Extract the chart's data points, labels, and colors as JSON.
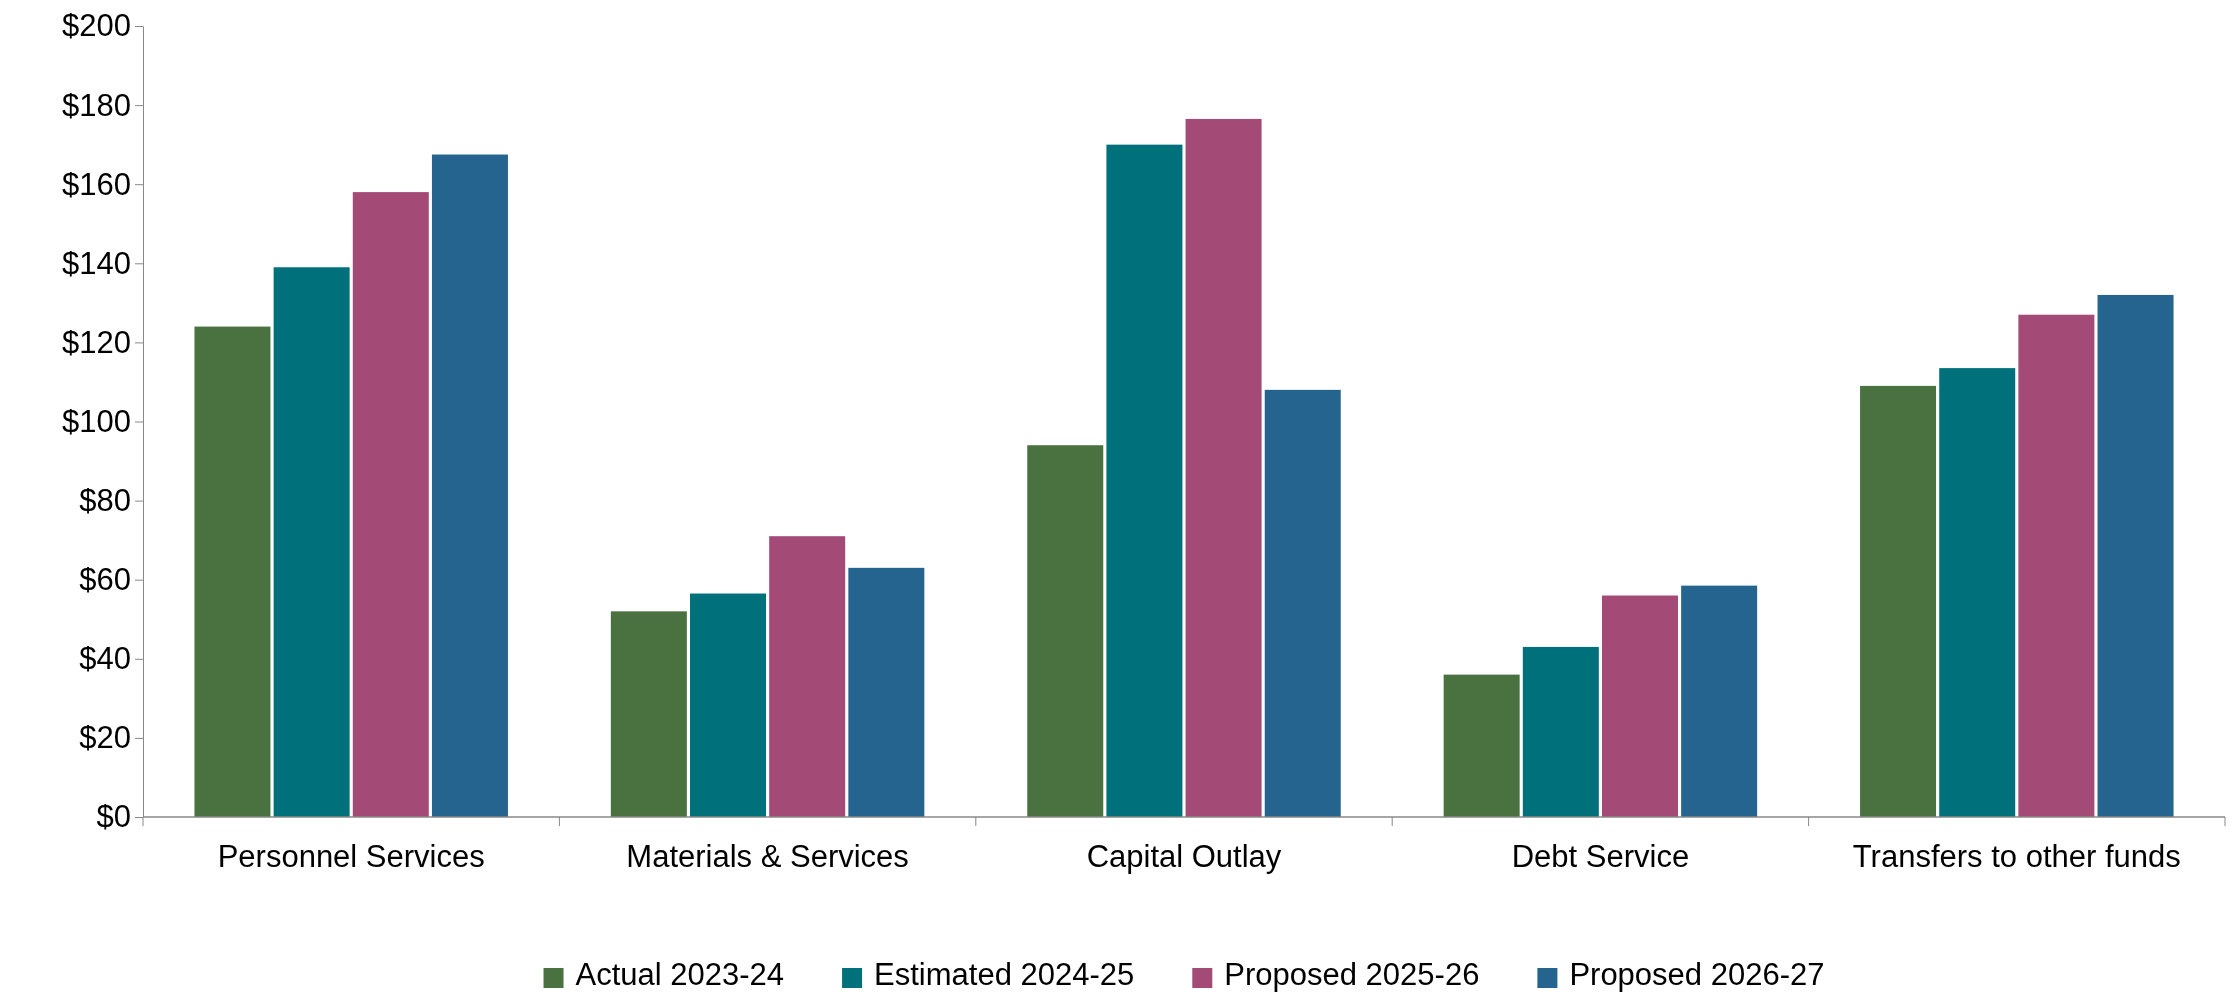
{
  "chart_data": {
    "type": "bar",
    "categories": [
      "Personnel Services",
      "Materials & Services",
      "Capital Outlay",
      "Debt Service",
      "Transfers to other funds"
    ],
    "series": [
      {
        "name": "Actual 2023-24",
        "color": "#4a7140",
        "values": [
          124,
          52,
          94,
          36,
          109
        ]
      },
      {
        "name": "Estimated 2024-25",
        "color": "#00707a",
        "values": [
          139,
          56.5,
          170,
          43,
          113.5
        ]
      },
      {
        "name": "Proposed 2025-26",
        "color": "#a34a76",
        "values": [
          158,
          71,
          176.5,
          56,
          127
        ]
      },
      {
        "name": "Proposed 2026-27",
        "color": "#24648e",
        "values": [
          167.5,
          63,
          108,
          58.5,
          132
        ]
      }
    ],
    "ylim": [
      0,
      200
    ],
    "yticks": [
      {
        "value": 0,
        "label": "$0"
      },
      {
        "value": 20,
        "label": "$20"
      },
      {
        "value": 40,
        "label": "$40"
      },
      {
        "value": 60,
        "label": "$60"
      },
      {
        "value": 80,
        "label": "$80"
      },
      {
        "value": 100,
        "label": "$100"
      },
      {
        "value": 120,
        "label": "$120"
      },
      {
        "value": 140,
        "label": "$140"
      },
      {
        "value": 160,
        "label": "$160"
      },
      {
        "value": 180,
        "label": "$180"
      },
      {
        "value": 200,
        "label": "$200"
      }
    ],
    "grid": false,
    "legend": "bottom"
  }
}
